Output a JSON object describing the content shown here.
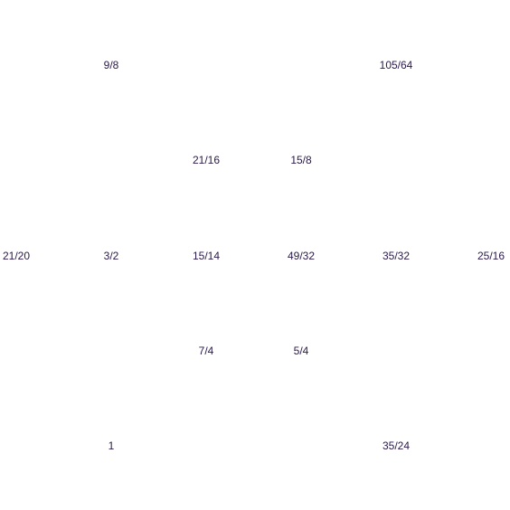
{
  "text_color": "#2a1a4a",
  "background": "#ffffff",
  "ratios": {
    "row1": [
      "9/8",
      "105/64"
    ],
    "row2": [
      "21/16",
      "15/8"
    ],
    "row3": [
      "21/20",
      "3/2",
      "15/14",
      "49/32",
      "35/32",
      "25/16"
    ],
    "row4": [
      "7/4",
      "5/4"
    ],
    "row5": [
      "1",
      "35/24"
    ]
  }
}
